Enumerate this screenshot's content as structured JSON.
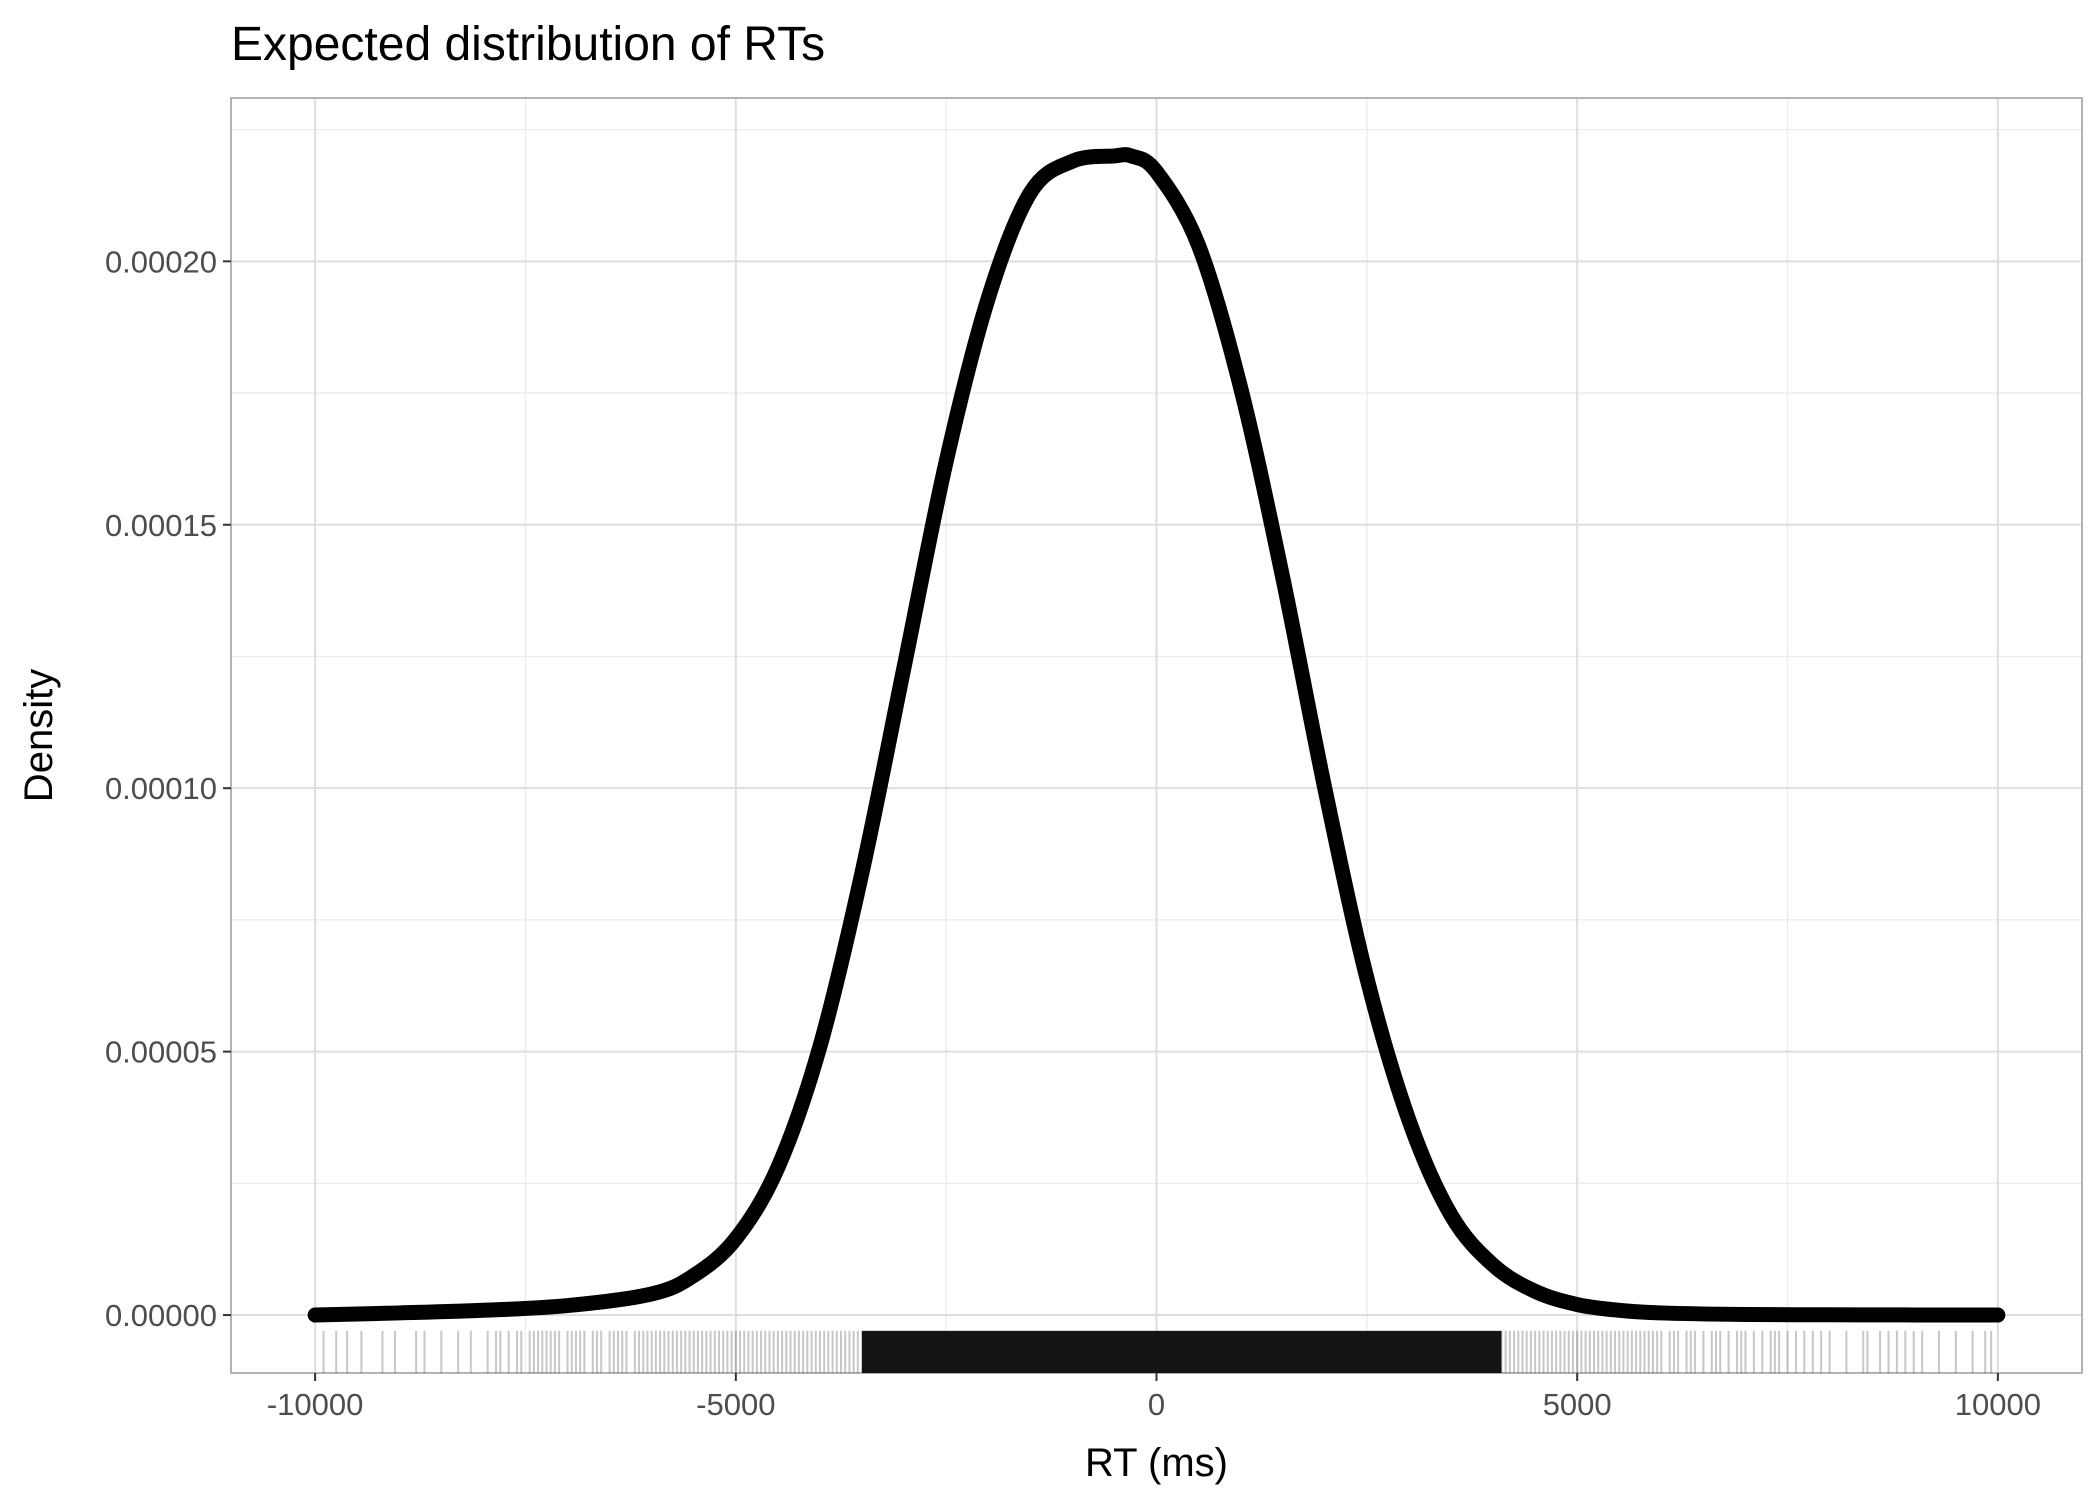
{
  "chart_data": {
    "type": "line",
    "title": "Expected distribution of RTs",
    "xlabel": "RT (ms)",
    "ylabel": "Density",
    "xlim": [
      -11000,
      11000
    ],
    "ylim": [
      -1.1e-05,
      0.000231
    ],
    "xticks": [
      -10000,
      -5000,
      0,
      5000,
      10000
    ],
    "xtick_labels": [
      "-10000",
      "-5000",
      "0",
      "5000",
      "10000"
    ],
    "yticks": [
      0,
      5e-05,
      0.0001,
      0.00015,
      0.0002
    ],
    "ytick_labels": [
      "0.00000",
      "0.00005",
      "0.00010",
      "0.00015",
      "0.00020"
    ],
    "grid": true,
    "series": [
      {
        "line_color": "#000000",
        "x": [
          -10000,
          -9000,
          -8000,
          -7000,
          -6000,
          -5500,
          -5000,
          -4500,
          -4000,
          -3500,
          -3000,
          -2500,
          -2000,
          -1500,
          -1000,
          -500,
          -300,
          0,
          500,
          1000,
          1500,
          2000,
          2500,
          3000,
          3500,
          4000,
          4500,
          5000,
          5500,
          6000,
          7000,
          8000,
          9000,
          10000
        ],
        "y": [
          0,
          4e-07,
          9e-07,
          1.8e-06,
          4e-06,
          7.5e-06,
          1.45e-05,
          2.8e-05,
          5.1e-05,
          8.4e-05,
          0.000123,
          0.000162,
          0.000193,
          0.000213,
          0.000219,
          0.00022,
          0.00022,
          0.000217,
          0.000203,
          0.000176,
          0.00014,
          0.0001,
          6.4e-05,
          3.7e-05,
          1.9e-05,
          9.5e-06,
          4.5e-06,
          2e-06,
          9e-07,
          4e-07,
          1e-07,
          5e-08,
          2e-08,
          0
        ]
      }
    ],
    "rug": {
      "color": "#000000",
      "opacity": 0.22,
      "ymin": -1.1e-05,
      "ymax": -3e-06,
      "values": [
        -9900,
        -9750,
        -9620,
        -9450,
        -9200,
        -9050,
        -8800,
        -8700,
        -8500,
        -8300,
        -8150,
        -7950,
        -7850,
        -7800,
        -7700,
        -7600,
        -7550,
        -7450,
        -7400,
        -7350,
        -7300,
        -7250,
        -7200,
        -7150,
        -7100,
        -7000,
        -6950,
        -6900,
        -6850,
        -6800,
        -6700,
        -6650,
        -6600,
        -6500,
        -6450,
        -6400,
        -6350,
        -6300,
        -6200,
        -6150,
        -6100,
        -6050,
        -6000,
        -5950,
        -5900,
        -5850,
        -5800,
        -5750,
        -5700,
        -5650,
        -5600,
        -5550,
        -5500,
        -5450,
        -5400,
        -5350,
        -5300,
        -5250,
        -5200,
        -5150,
        -5100,
        -5050,
        -5000,
        -4950,
        -4900,
        -4850,
        -4800,
        -4750,
        -4700,
        -4650,
        -4600,
        -4550,
        -4500,
        -4450,
        -4400,
        -4350,
        -4300,
        -4250,
        -4200,
        -4150,
        -4100,
        -4050,
        -4000,
        -3950,
        -3900,
        -3850,
        -3800,
        -3750,
        -3700,
        -3650,
        -3600,
        -3550,
        -3500,
        4100,
        4150,
        4200,
        4250,
        4300,
        4350,
        4400,
        4450,
        4500,
        4550,
        4600,
        4650,
        4700,
        4750,
        4800,
        4850,
        4900,
        4950,
        5000,
        5050,
        5100,
        5150,
        5200,
        5250,
        5300,
        5350,
        5400,
        5450,
        5500,
        5550,
        5600,
        5650,
        5700,
        5750,
        5800,
        5850,
        5900,
        5950,
        6000,
        6100,
        6150,
        6200,
        6300,
        6350,
        6400,
        6500,
        6600,
        6650,
        6700,
        6800,
        6900,
        6950,
        7000,
        7100,
        7200,
        7300,
        7350,
        7400,
        7500,
        7600,
        7700,
        7800,
        7900,
        8000,
        8200,
        8400,
        8450,
        8600,
        8700,
        8800,
        8900,
        9000,
        9100,
        9300,
        9500,
        9700,
        9850,
        9920
      ],
      "dense_range": [
        -3500,
        4100
      ]
    }
  }
}
